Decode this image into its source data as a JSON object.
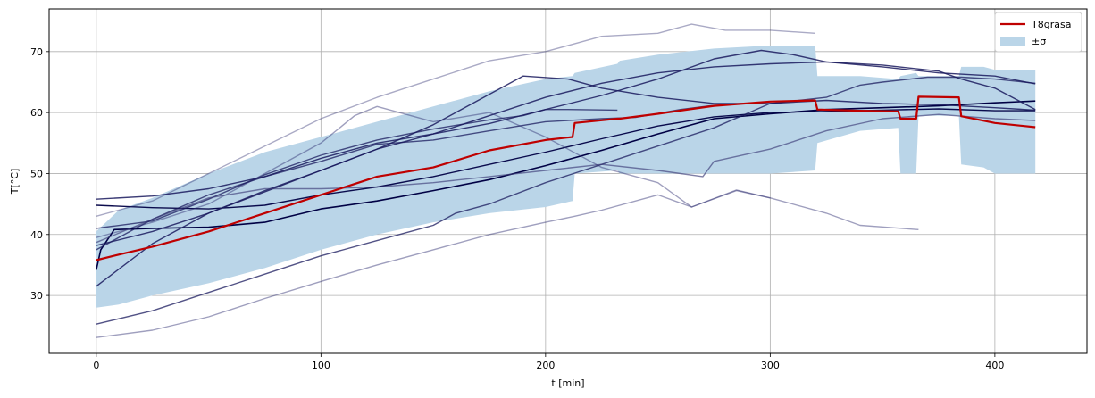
{
  "chart_data": {
    "type": "line",
    "title": "",
    "xlabel": "t [min]",
    "ylabel": "T[°C]",
    "xlim": [
      -21,
      441
    ],
    "ylim": [
      20.5,
      77
    ],
    "xticks": [
      0,
      100,
      200,
      300,
      400
    ],
    "yticks": [
      30,
      40,
      50,
      60,
      70
    ],
    "grid": true,
    "legend": {
      "placement": "top-right",
      "entries": [
        {
          "label": "T8grasa",
          "color": "#bf0000",
          "kind": "line"
        },
        {
          "label": "±σ",
          "color": "#bad5e8",
          "kind": "patch"
        }
      ]
    },
    "band": {
      "name": "±σ",
      "color": "#bad5e8",
      "x": [
        0,
        10,
        25,
        50,
        75,
        100,
        125,
        150,
        175,
        200,
        212,
        213,
        232,
        233,
        250,
        275,
        300,
        320,
        321,
        340,
        357,
        358,
        365,
        366,
        384,
        385,
        395,
        400,
        418
      ],
      "upper": [
        40.5,
        44,
        46,
        50,
        53.5,
        56,
        58.5,
        61,
        63.5,
        65.5,
        66,
        66.5,
        68,
        68.5,
        69.5,
        70.5,
        71,
        71,
        66,
        66,
        65.5,
        66,
        66.5,
        66,
        66,
        67.5,
        67.5,
        67,
        67
      ],
      "lower": [
        28,
        28.5,
        30,
        32,
        34.5,
        37.5,
        40,
        42,
        43.5,
        44.5,
        45.5,
        50,
        50.5,
        50,
        50,
        50,
        50,
        50.5,
        55,
        57,
        57.5,
        50,
        50,
        59.5,
        59.5,
        51.5,
        51,
        50,
        50
      ]
    },
    "series": [
      {
        "color": "#bf0000",
        "width": 2.2,
        "opacity": 1,
        "x": [
          0,
          10,
          25,
          50,
          75,
          100,
          125,
          150,
          175,
          200,
          212,
          213,
          232,
          233,
          250,
          275,
          300,
          320,
          321,
          340,
          357,
          358,
          365,
          366,
          384,
          385,
          400,
          418
        ],
        "y": [
          35.8,
          36.7,
          38,
          40.5,
          43.5,
          46.5,
          49.5,
          51,
          53.8,
          55.5,
          56,
          58.3,
          59,
          59,
          59.8,
          61.1,
          61.8,
          62,
          60.5,
          60.3,
          60.2,
          59,
          59,
          62.6,
          62.5,
          59.4,
          58.3,
          57.6
        ]
      },
      {
        "color": "#000044",
        "width": 1.6,
        "opacity": 1,
        "x": [
          0,
          2,
          8,
          25,
          50,
          75,
          100,
          125,
          150,
          175,
          200,
          225,
          250,
          275,
          300,
          325,
          350,
          375,
          400,
          418
        ],
        "y": [
          34.2,
          37.5,
          40.8,
          41,
          41.2,
          42,
          44.2,
          45.5,
          47.2,
          49,
          51.3,
          53.8,
          56.5,
          59,
          59.8,
          60.5,
          60.8,
          61.1,
          61.6,
          61.9
        ]
      },
      {
        "color": "#000044",
        "width": 1.4,
        "opacity": 0.95,
        "x": [
          0,
          25,
          50,
          75,
          100,
          125,
          150,
          175,
          200,
          225,
          250,
          275,
          300,
          325,
          350,
          375,
          400,
          418
        ],
        "y": [
          44.8,
          44.4,
          44.2,
          44.8,
          46.5,
          47.8,
          49.5,
          51.5,
          53.5,
          55.7,
          57.8,
          59.3,
          60,
          60.2,
          60.4,
          60.6,
          60.3,
          60.3
        ]
      },
      {
        "color": "#1a1a5e",
        "width": 1.4,
        "opacity": 0.85,
        "x": [
          0,
          25,
          50,
          75,
          100,
          125,
          150,
          175,
          190,
          210,
          225,
          250,
          275,
          300,
          325,
          350,
          375,
          400,
          418
        ],
        "y": [
          38.2,
          40.5,
          43.5,
          47.2,
          50.5,
          54,
          58,
          63,
          66,
          65.5,
          64,
          62.5,
          61.5,
          61.5,
          62,
          61.5,
          61.3,
          60.8,
          60.4
        ]
      },
      {
        "color": "#1a1a5e",
        "width": 1.4,
        "opacity": 0.85,
        "x": [
          0,
          25,
          50,
          75,
          100,
          125,
          150,
          175,
          200,
          225,
          250,
          275,
          300,
          325,
          350,
          375,
          400,
          418
        ],
        "y": [
          31.5,
          38.5,
          43.5,
          47,
          50.5,
          54,
          56.5,
          59.5,
          62.5,
          64.8,
          66.5,
          67.5,
          68,
          68.3,
          67.5,
          66.5,
          66,
          64.7
        ]
      },
      {
        "color": "#1a1a5e",
        "width": 1.4,
        "opacity": 0.85,
        "x": [
          0,
          25,
          50,
          75,
          100,
          125,
          150,
          175,
          200,
          225,
          250,
          275,
          296,
          310,
          325,
          350,
          375,
          385,
          400,
          418
        ],
        "y": [
          45.8,
          46.3,
          47.5,
          49.5,
          52.5,
          55,
          56.5,
          58.2,
          60.5,
          62.8,
          65.5,
          68.8,
          70.2,
          69.5,
          68.3,
          67.8,
          66.8,
          65.5,
          64,
          60.5
        ]
      },
      {
        "color": "#1a1a5e",
        "width": 1.4,
        "opacity": 0.75,
        "x": [
          0,
          25,
          50,
          75,
          100,
          125,
          150,
          160,
          175,
          200,
          225,
          250,
          275,
          300,
          325,
          340,
          350,
          370,
          385,
          400,
          418
        ],
        "y": [
          25.3,
          27.5,
          30.5,
          33.5,
          36.5,
          39,
          41.5,
          43.5,
          45,
          48.5,
          51.5,
          54.5,
          57.5,
          61.5,
          62.5,
          64.5,
          65,
          65.8,
          65.8,
          65.5,
          64.8
        ]
      },
      {
        "color": "#1a1a5e",
        "width": 1.4,
        "opacity": 0.75,
        "x": [
          0,
          25,
          50,
          75,
          100,
          125,
          150,
          175,
          190,
          200,
          210,
          232
        ],
        "y": [
          41,
          42.2,
          45.8,
          49.8,
          53,
          55.5,
          57.3,
          58.8,
          59.5,
          60.5,
          60.5,
          60.4
        ]
      },
      {
        "color": "#1a1a5e",
        "width": 1.4,
        "opacity": 0.75,
        "x": [
          0,
          25,
          50,
          75,
          100,
          125,
          150,
          175,
          200,
          225,
          240,
          260,
          275,
          282
        ],
        "y": [
          37.5,
          42.5,
          46.5,
          49.5,
          52,
          54.8,
          55.5,
          57,
          58.5,
          59,
          59.2,
          60.5,
          61.2,
          61.3
        ]
      },
      {
        "color": "#3c3c78",
        "width": 1.4,
        "opacity": 0.65,
        "x": [
          0,
          25,
          50,
          75,
          100,
          125,
          150,
          175,
          200,
          225,
          250,
          270,
          275,
          300,
          325,
          350,
          375,
          400,
          418
        ],
        "y": [
          38.7,
          42.5,
          46,
          47.5,
          47.5,
          47.8,
          48.5,
          49.5,
          50.5,
          51.5,
          50.5,
          49.5,
          52,
          54,
          57,
          59,
          59.7,
          59,
          58.7
        ]
      },
      {
        "color": "#2a2a6e",
        "width": 1.4,
        "opacity": 0.45,
        "x": [
          0,
          25,
          50,
          75,
          100,
          125,
          150,
          175,
          200,
          213,
          225,
          250,
          265,
          285,
          300,
          325,
          340,
          366
        ],
        "y": [
          23.1,
          24.3,
          26.5,
          29.5,
          32.3,
          35,
          37.5,
          40,
          42,
          43,
          44,
          46.5,
          44.5,
          47.2,
          46,
          43.5,
          41.5,
          40.8
        ]
      },
      {
        "color": "#2a2a6e",
        "width": 1.4,
        "opacity": 0.4,
        "x": [
          0,
          25,
          50,
          75,
          100,
          125,
          150,
          175,
          200,
          215,
          225,
          250,
          265,
          280,
          300,
          320
        ],
        "y": [
          43,
          45.5,
          50,
          54.5,
          59,
          62.5,
          65.5,
          68.5,
          70,
          71.5,
          72.5,
          73,
          74.5,
          73.5,
          73.5,
          73
        ]
      },
      {
        "color": "#2a2a6e",
        "width": 1.4,
        "opacity": 0.45,
        "x": [
          0,
          25,
          50,
          75,
          100,
          115,
          125,
          150,
          175,
          200,
          225,
          250,
          265,
          285,
          300
        ],
        "y": [
          39.5,
          42,
          45,
          50,
          55,
          59.5,
          61,
          58.5,
          60,
          56,
          51,
          48.5,
          44.5,
          47.3,
          46
        ]
      }
    ]
  }
}
